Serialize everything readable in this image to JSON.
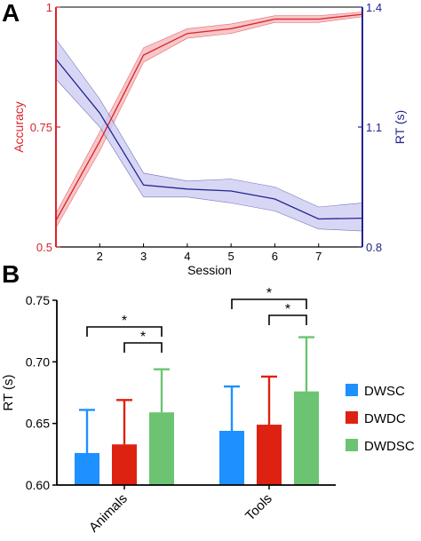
{
  "panels": {
    "a": {
      "label": "A"
    },
    "b": {
      "label": "B"
    }
  },
  "colors": {
    "accuracy": "#d9232a",
    "accuracy_band": "#f3b3b6",
    "rt": "#24248f",
    "rt_band": "#c9c9f2",
    "DWSC": "#1e90ff",
    "DWDC": "#dd2211",
    "DWDSC": "#6cc472",
    "axis": "#000000"
  },
  "chart_data": [
    {
      "type": "line",
      "panel": "A",
      "xlabel": "Session",
      "x": [
        1,
        2,
        3,
        4,
        5,
        6,
        7,
        8
      ],
      "xlim": [
        1,
        8
      ],
      "xticks": [
        2,
        3,
        4,
        5,
        6,
        7
      ],
      "xtick_labels": [
        "2",
        "3",
        "4",
        "5",
        "6",
        "7"
      ],
      "grid": false,
      "y_left": {
        "label": "Accuracy",
        "lim": [
          0.5,
          1.0
        ],
        "ticks": [
          0.5,
          0.75,
          1.0
        ],
        "tick_labels": [
          "0.5",
          "0.75",
          "1"
        ]
      },
      "y_right": {
        "label": "RT (s)",
        "lim": [
          0.8,
          1.4
        ],
        "ticks": [
          0.8,
          1.1,
          1.4
        ],
        "tick_labels": [
          "0.8",
          "1.1",
          "1.4"
        ]
      },
      "series": [
        {
          "axis": "left",
          "mean": [
            0.555,
            0.72,
            0.9,
            0.945,
            0.955,
            0.975,
            0.975,
            0.985
          ],
          "lower": [
            0.54,
            0.7,
            0.885,
            0.935,
            0.945,
            0.968,
            0.968,
            0.98
          ],
          "upper": [
            0.57,
            0.74,
            0.915,
            0.955,
            0.965,
            0.982,
            0.982,
            0.99
          ]
        },
        {
          "axis": "right",
          "mean": [
            1.27,
            1.135,
            0.955,
            0.945,
            0.94,
            0.92,
            0.87,
            0.872
          ],
          "lower": [
            1.22,
            1.1,
            0.925,
            0.925,
            0.91,
            0.89,
            0.845,
            0.84
          ],
          "upper": [
            1.32,
            1.17,
            0.985,
            0.965,
            0.97,
            0.95,
            0.9,
            0.91
          ]
        }
      ]
    },
    {
      "type": "bar",
      "panel": "B",
      "categories": [
        "Animals",
        "Tools"
      ],
      "ylabel": "RT (s)",
      "ylim": [
        0.6,
        0.75
      ],
      "yticks": [
        0.6,
        0.65,
        0.7,
        0.75
      ],
      "ytick_labels": [
        "0.60",
        "0.65",
        "0.70",
        "0.75"
      ],
      "legend_position": "right",
      "grid": false,
      "series": [
        {
          "name": "DWSC",
          "values": [
            0.626,
            0.644
          ],
          "error": [
            0.035,
            0.036
          ]
        },
        {
          "name": "DWDC",
          "values": [
            0.633,
            0.649
          ],
          "error": [
            0.036,
            0.039
          ]
        },
        {
          "name": "DWDSC",
          "values": [
            0.659,
            0.676
          ],
          "error": [
            0.035,
            0.044
          ]
        }
      ],
      "significance": [
        {
          "group": "Animals",
          "from": "DWSC",
          "to": "DWDSC",
          "label": "*"
        },
        {
          "group": "Animals",
          "from": "DWDC",
          "to": "DWDSC",
          "label": "*"
        },
        {
          "group": "Tools",
          "from": "DWSC",
          "to": "DWDSC",
          "label": "*"
        },
        {
          "group": "Tools",
          "from": "DWDC",
          "to": "DWDSC",
          "label": "*"
        }
      ]
    }
  ]
}
